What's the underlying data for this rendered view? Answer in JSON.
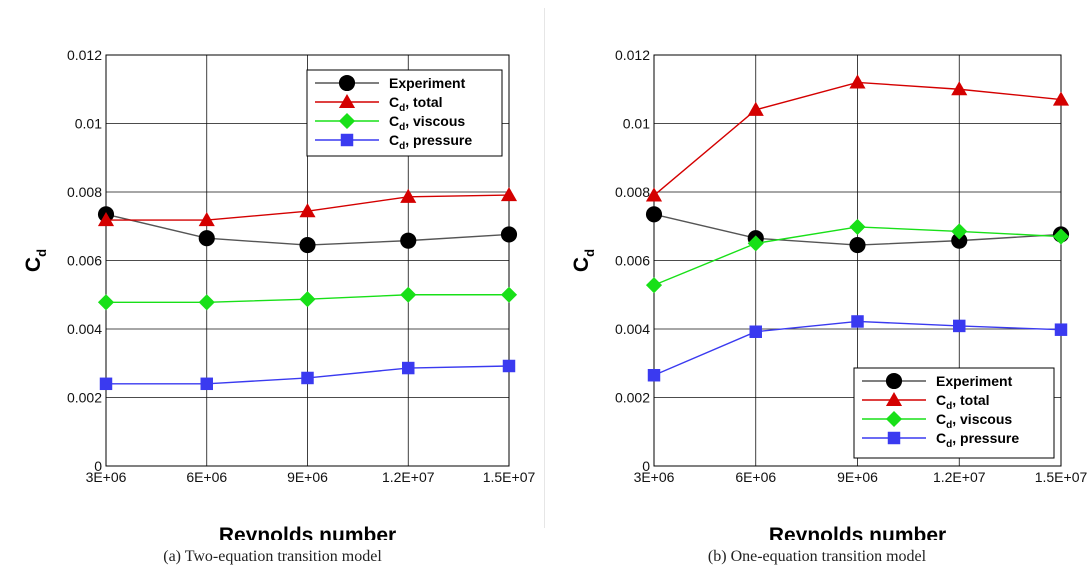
{
  "chart_data": [
    {
      "type": "line",
      "caption": "(a)  Two-equation transition model",
      "xlabel": "Reynolds number",
      "ylabel": "C",
      "ylabel_sub": "d",
      "x": [
        3000000,
        6000000,
        9000000,
        12000000,
        15000000
      ],
      "xticks": [
        "3E+06",
        "6E+06",
        "9E+06",
        "1.2E+07",
        "1.5E+07"
      ],
      "ylim": [
        0,
        0.012
      ],
      "yticks": [
        "0",
        "0.002",
        "0.004",
        "0.006",
        "0.008",
        "0.01",
        "0.012"
      ],
      "grid": true,
      "legend_position": "top-right",
      "series": [
        {
          "name": "Experiment",
          "label_main": "Experiment",
          "label_sub": "",
          "label_tail": "",
          "marker": "circle",
          "color": "#000000",
          "line": "#555555",
          "values": [
            0.00735,
            0.00665,
            0.00645,
            0.00658,
            0.00676
          ]
        },
        {
          "name": "Cd, total",
          "label_main": "C",
          "label_sub": "d",
          "label_tail": ", total",
          "marker": "triangle",
          "color": "#d40000",
          "line": "#d40000",
          "values": [
            0.00718,
            0.00718,
            0.00744,
            0.00786,
            0.00791
          ]
        },
        {
          "name": "Cd, viscous",
          "label_main": "C",
          "label_sub": "d",
          "label_tail": ", viscous",
          "marker": "diamond",
          "color": "#18e018",
          "line": "#18e018",
          "values": [
            0.00478,
            0.00478,
            0.00487,
            0.005,
            0.005
          ]
        },
        {
          "name": "Cd, pressure",
          "label_main": "C",
          "label_sub": "d",
          "label_tail": ", pressure",
          "marker": "square",
          "color": "#3a3af0",
          "line": "#3a3af0",
          "values": [
            0.0024,
            0.0024,
            0.00257,
            0.00286,
            0.00292
          ]
        }
      ]
    },
    {
      "type": "line",
      "caption": "(b)  One-equation transition model",
      "xlabel": "Reynolds number",
      "ylabel": "C",
      "ylabel_sub": "d",
      "x": [
        3000000,
        6000000,
        9000000,
        12000000,
        15000000
      ],
      "xticks": [
        "3E+06",
        "6E+06",
        "9E+06",
        "1.2E+07",
        "1.5E+07"
      ],
      "ylim": [
        0,
        0.012
      ],
      "yticks": [
        "0",
        "0.002",
        "0.004",
        "0.006",
        "0.008",
        "0.01",
        "0.012"
      ],
      "grid": true,
      "legend_position": "bottom-right",
      "series": [
        {
          "name": "Experiment",
          "label_main": "Experiment",
          "label_sub": "",
          "label_tail": "",
          "marker": "circle",
          "color": "#000000",
          "line": "#555555",
          "values": [
            0.00735,
            0.00665,
            0.00645,
            0.00658,
            0.00676
          ]
        },
        {
          "name": "Cd, total",
          "label_main": "C",
          "label_sub": "d",
          "label_tail": ", total",
          "marker": "triangle",
          "color": "#d40000",
          "line": "#d40000",
          "values": [
            0.0079,
            0.0104,
            0.0112,
            0.011,
            0.0107
          ]
        },
        {
          "name": "Cd, viscous",
          "label_main": "C",
          "label_sub": "d",
          "label_tail": ", viscous",
          "marker": "diamond",
          "color": "#18e018",
          "line": "#18e018",
          "values": [
            0.00528,
            0.0065,
            0.00698,
            0.00685,
            0.0067
          ]
        },
        {
          "name": "Cd, pressure",
          "label_main": "C",
          "label_sub": "d",
          "label_tail": ", pressure",
          "marker": "square",
          "color": "#3a3af0",
          "line": "#3a3af0",
          "values": [
            0.00265,
            0.00392,
            0.00422,
            0.00409,
            0.00398
          ]
        }
      ]
    }
  ]
}
